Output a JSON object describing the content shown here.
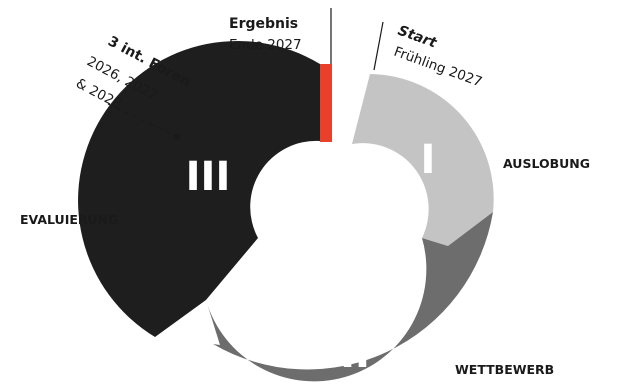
{
  "phases": [
    {
      "numeral": "I",
      "label": "AUSLOBUNG",
      "color": "#c4c4c4"
    },
    {
      "numeral": "II",
      "label": "WETTBEWERB",
      "color": "#6d6d6d"
    },
    {
      "numeral": "III",
      "label": "EVALUIERUNG",
      "color": "#1e1e1e"
    }
  ],
  "result_marker_color": "#e8402b",
  "start": {
    "title": "Start",
    "date": "Frühling 2027"
  },
  "result": {
    "title": "Ergebnis",
    "date": "Ende 2027"
  },
  "forums": {
    "title": "3 int. Foren",
    "year_1": "2026, 2027",
    "year_2": "& 2028"
  }
}
